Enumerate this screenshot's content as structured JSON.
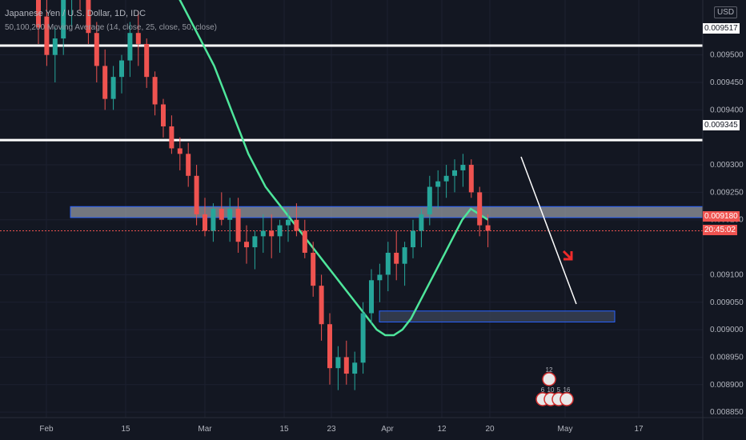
{
  "legend": {
    "symbol": "Japanese Yen / U.S. Dollar, 1D, IDC",
    "indicator": "50,100,200 Moving Average (14, close, 25, close, 50, close)"
  },
  "currency_badge": "USD",
  "price_labels": {
    "resistance_top": "0.009517",
    "resistance_mid": "0.009345",
    "current_price": "0.009180",
    "countdown": "20:45:02"
  },
  "colors": {
    "background": "#131722",
    "bull": "#26a69a",
    "bear": "#ef5350",
    "ma": "#4ee69b",
    "zone_fill": "#c2c6ce",
    "zone_border": "#2962ff",
    "current_price": "#ef5350"
  },
  "event_icons": [
    {
      "name": "economic-event-icon",
      "count": "12"
    },
    {
      "name": "economic-event-icon",
      "count": "6"
    },
    {
      "name": "economic-event-icon",
      "count": "10"
    },
    {
      "name": "economic-event-icon",
      "count": "5"
    },
    {
      "name": "economic-event-icon",
      "count": "16"
    }
  ],
  "chart_data": {
    "type": "candlestick",
    "title": "Japanese Yen / U.S. Dollar, 1D, IDC",
    "x_ticks": [
      "Feb",
      "15",
      "Mar",
      "15",
      "23",
      "Apr",
      "12",
      "20",
      "May",
      "17"
    ],
    "y_ticks": [
      "0.009500",
      "0.009450",
      "0.009400",
      "0.009300",
      "0.009250",
      "0.009200",
      "0.009100",
      "0.009050",
      "0.009000",
      "0.008950",
      "0.008900",
      "0.008850"
    ],
    "ylim": [
      0.00884,
      0.0096
    ],
    "horizontal_lines": [
      0.009517,
      0.009345
    ],
    "current_price": 0.00918,
    "zones": [
      {
        "name": "resistance-zone",
        "low": 0.009204,
        "high": 0.009224
      },
      {
        "name": "support-zone",
        "low": 0.009014,
        "high": 0.009034
      }
    ],
    "ohlc": [
      [
        0.00961,
        0.00962,
        0.00952,
        0.00955
      ],
      [
        0.00957,
        0.00963,
        0.00948,
        0.0095
      ],
      [
        0.0095,
        0.00955,
        0.00945,
        0.00953
      ],
      [
        0.00953,
        0.00961,
        0.0095,
        0.0096
      ],
      [
        0.0096,
        0.00964,
        0.00955,
        0.00963
      ],
      [
        0.00963,
        0.00967,
        0.00958,
        0.0096
      ],
      [
        0.0096,
        0.00963,
        0.00952,
        0.00954
      ],
      [
        0.00954,
        0.00956,
        0.00945,
        0.00948
      ],
      [
        0.00948,
        0.00951,
        0.0094,
        0.00942
      ],
      [
        0.00942,
        0.00948,
        0.0094,
        0.00946
      ],
      [
        0.00946,
        0.0095,
        0.00943,
        0.00949
      ],
      [
        0.00949,
        0.00956,
        0.00946,
        0.00954
      ],
      [
        0.00954,
        0.00958,
        0.00948,
        0.00952
      ],
      [
        0.00952,
        0.00953,
        0.00944,
        0.00946
      ],
      [
        0.00946,
        0.00947,
        0.00939,
        0.00941
      ],
      [
        0.00941,
        0.00942,
        0.00935,
        0.00937
      ],
      [
        0.00937,
        0.00939,
        0.00932,
        0.00933
      ],
      [
        0.00933,
        0.00935,
        0.00929,
        0.00932
      ],
      [
        0.00932,
        0.00934,
        0.00926,
        0.00928
      ],
      [
        0.00928,
        0.0093,
        0.00919,
        0.00921
      ],
      [
        0.00921,
        0.00924,
        0.00917,
        0.00918
      ],
      [
        0.00918,
        0.00923,
        0.00916,
        0.00922
      ],
      [
        0.00922,
        0.00925,
        0.00919,
        0.0092
      ],
      [
        0.0092,
        0.00924,
        0.00916,
        0.00922
      ],
      [
        0.00922,
        0.00924,
        0.00914,
        0.00916
      ],
      [
        0.00916,
        0.00919,
        0.00912,
        0.00915
      ],
      [
        0.00915,
        0.00918,
        0.00911,
        0.00917
      ],
      [
        0.00917,
        0.00921,
        0.00914,
        0.00918
      ],
      [
        0.00918,
        0.00921,
        0.00913,
        0.00917
      ],
      [
        0.00917,
        0.0092,
        0.00914,
        0.00919
      ],
      [
        0.00919,
        0.00922,
        0.00916,
        0.0092
      ],
      [
        0.0092,
        0.00923,
        0.00917,
        0.00918
      ],
      [
        0.00918,
        0.0092,
        0.00913,
        0.00914
      ],
      [
        0.00914,
        0.00916,
        0.00906,
        0.00908
      ],
      [
        0.00908,
        0.0091,
        0.00898,
        0.00901
      ],
      [
        0.00901,
        0.00903,
        0.0089,
        0.00893
      ],
      [
        0.00893,
        0.00897,
        0.00889,
        0.00895
      ],
      [
        0.00895,
        0.00898,
        0.0089,
        0.00892
      ],
      [
        0.00892,
        0.00896,
        0.00889,
        0.00894
      ],
      [
        0.00894,
        0.00905,
        0.00892,
        0.00903
      ],
      [
        0.00903,
        0.00911,
        0.00901,
        0.00909
      ],
      [
        0.00909,
        0.00912,
        0.00905,
        0.0091
      ],
      [
        0.0091,
        0.00916,
        0.00907,
        0.00914
      ],
      [
        0.00914,
        0.00918,
        0.00909,
        0.00912
      ],
      [
        0.00912,
        0.00916,
        0.00908,
        0.00915
      ],
      [
        0.00915,
        0.0092,
        0.00913,
        0.00918
      ],
      [
        0.00918,
        0.00922,
        0.00915,
        0.00921
      ],
      [
        0.00921,
        0.00928,
        0.00919,
        0.00926
      ],
      [
        0.00926,
        0.00929,
        0.00922,
        0.00927
      ],
      [
        0.00927,
        0.0093,
        0.00924,
        0.00928
      ],
      [
        0.00928,
        0.00931,
        0.00925,
        0.00929
      ],
      [
        0.00929,
        0.00932,
        0.00926,
        0.0093
      ],
      [
        0.0093,
        0.00931,
        0.00924,
        0.00925
      ],
      [
        0.00925,
        0.00926,
        0.00917,
        0.00919
      ],
      [
        0.00919,
        0.00921,
        0.00915,
        0.00918
      ]
    ],
    "moving_average": [
      0.00971,
      0.0097,
      0.00969,
      0.00968,
      0.00966,
      0.00964,
      0.00962,
      0.0096,
      0.00957,
      0.00954,
      0.00951,
      0.00948,
      0.00944,
      0.0094,
      0.00936,
      0.00932,
      0.00929,
      0.00926,
      0.00924,
      0.00922,
      0.0092,
      0.00918,
      0.00916,
      0.00914,
      0.00912,
      0.0091,
      0.00908,
      0.00906,
      0.00904,
      0.00902,
      0.009,
      0.00899,
      0.00899,
      0.009,
      0.00902,
      0.00905,
      0.00908,
      0.00911,
      0.00914,
      0.00917,
      0.0092,
      0.00922,
      0.00921,
      0.0092
    ]
  }
}
